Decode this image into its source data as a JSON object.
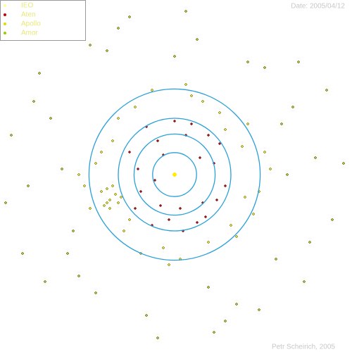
{
  "chart_data": {
    "type": "scatter",
    "date_label": "Date: 2005/04/12",
    "credit": "Petr Scheirich, 2005",
    "xlim": [
      -3.1,
      3.1
    ],
    "ylim": [
      -3.1,
      3.1
    ],
    "orbit_radii": [
      0.39,
      0.72,
      1.0,
      1.52
    ],
    "orbit_color": "#2aa0d8",
    "sun": {
      "x": 0,
      "y": 0,
      "color": "#ffee00"
    },
    "series": [
      {
        "name": "IEO",
        "color": "#ffff99"
      },
      {
        "name": "Aten",
        "color": "#cc0000",
        "x": [
          0.2,
          -0.3,
          0.5,
          -0.6,
          0.7,
          -0.1,
          0.3,
          -0.8,
          0.9,
          0.1,
          -0.4,
          0.6,
          -0.7,
          0.4,
          -0.2,
          0.8,
          -0.5,
          0.0,
          0.55,
          -0.35,
          0.15,
          -0.65,
          0.75,
          -0.25,
          0.45
        ],
        "values": [
          0.7,
          0.6,
          -0.5,
          -0.3,
          0.2,
          -0.8,
          0.9,
          0.4,
          -0.2,
          -0.6,
          -0.9,
          0.7,
          -0.6,
          -0.85,
          0.35,
          0.55,
          0.85,
          0.95,
          -0.75,
          -0.1,
          -1.0,
          0.1,
          -0.45,
          -0.55,
          0.3
        ]
      },
      {
        "name": "Apollo",
        "color": "#dddd00",
        "x": [
          1.2,
          -1.1,
          0.8,
          -0.9,
          1.5,
          -1.4,
          0.3,
          -0.2,
          1.0,
          -1.2,
          1.3,
          -1.5,
          0.6,
          -0.7,
          1.7,
          -1.6,
          0.1,
          -0.4,
          1.1,
          -1.0,
          0.9,
          -0.8,
          1.4,
          -1.3,
          0.5,
          -0.6,
          1.6,
          -1.7,
          0.2,
          -0.1,
          1.25,
          -1.15,
          -1.05,
          -1.2,
          -1.0,
          -1.3,
          -1.1,
          -0.95,
          -1.25,
          -1.15
        ],
        "values": [
          0.5,
          0.6,
          1.1,
          -1.0,
          -0.3,
          0.2,
          1.4,
          -1.3,
          -0.9,
          -0.5,
          0.9,
          -0.6,
          -1.2,
          1.2,
          0.1,
          -0.2,
          -1.5,
          1.5,
          -1.1,
          1.0,
          0.8,
          -0.8,
          -0.7,
          0.4,
          1.3,
          -1.4,
          0.4,
          0.0,
          1.6,
          -1.6,
          -0.4,
          -0.45,
          -0.35,
          -0.25,
          -0.5,
          -0.3,
          -0.2,
          -0.4,
          -0.55,
          -0.6
        ]
      },
      {
        "name": "Amor",
        "color": "#99cc00",
        "x": [
          2.1,
          -2.2,
          1.8,
          -1.9,
          2.5,
          -2.6,
          0.4,
          -0.5,
          1.3,
          -1.4,
          2.8,
          -2.9,
          0.9,
          -1.0,
          2.3,
          -2.4,
          0.2,
          -0.3,
          1.6,
          -1.7,
          2.0,
          -2.0,
          2.7,
          -2.7,
          1.1,
          -1.2,
          0.7,
          -0.8,
          1.9,
          -1.8,
          2.4,
          -2.5,
          0.0,
          3.0,
          -3.0,
          1.5,
          -1.5,
          2.2,
          -2.3,
          0.6
        ],
        "values": [
          1.2,
          1.0,
          -1.5,
          -1.4,
          0.3,
          -0.2,
          2.4,
          -2.5,
          2.0,
          -2.1,
          -0.8,
          0.7,
          -2.6,
          2.6,
          -1.9,
          1.8,
          2.9,
          -2.9,
          1.9,
          -1.8,
          0.0,
          0.1,
          1.5,
          -1.4,
          -2.3,
          2.2,
          -2.8,
          2.8,
          0.9,
          -1.0,
          -1.2,
          1.3,
          2.1,
          0.2,
          -0.5,
          -2.4,
          2.3,
          2.0,
          -1.9,
          -2.0
        ]
      }
    ]
  }
}
